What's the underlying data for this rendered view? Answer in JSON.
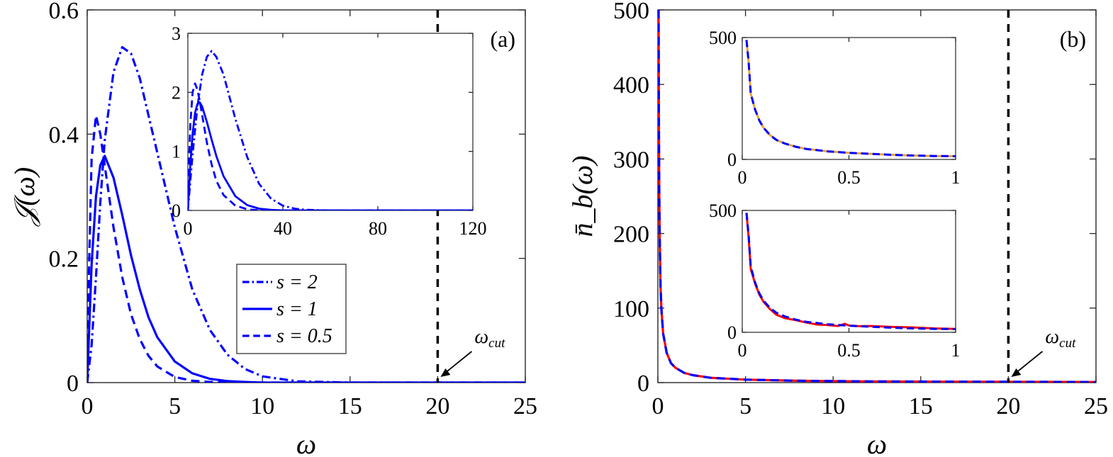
{
  "chart_data": [
    {
      "type": "line",
      "panel_label": "(a)",
      "xlabel": "ω",
      "ylabel": "𝒥(ω)",
      "xlim": [
        0,
        25
      ],
      "ylim": [
        0,
        0.6
      ],
      "xticks": [
        "0",
        "5",
        "10",
        "15",
        "20",
        "25"
      ],
      "yticks": [
        "0",
        "0.2",
        "0.4",
        "0.6"
      ],
      "grid": false,
      "legend_position": "lower-center",
      "cutoff": {
        "x": 20,
        "label": "ω",
        "label_sub": "cut"
      },
      "series": [
        {
          "name": "s = 2",
          "style": "dashdot",
          "color": "#0000ff",
          "x": [
            0,
            0.25,
            0.5,
            0.75,
            1,
            1.5,
            2,
            2.5,
            3,
            3.5,
            4,
            5,
            6,
            7,
            8,
            9,
            10,
            12,
            15,
            20,
            25
          ],
          "y": [
            0,
            0.06,
            0.17,
            0.29,
            0.39,
            0.5,
            0.54,
            0.53,
            0.49,
            0.43,
            0.37,
            0.25,
            0.15,
            0.085,
            0.045,
            0.022,
            0.01,
            0.002,
            0,
            0,
            0
          ]
        },
        {
          "name": "s = 1",
          "style": "solid",
          "color": "#0000ff",
          "x": [
            0,
            0.25,
            0.5,
            0.75,
            1,
            1.5,
            2,
            2.5,
            3,
            3.5,
            4,
            5,
            6,
            7,
            8,
            9,
            10,
            12,
            15,
            20,
            25
          ],
          "y": [
            0,
            0.19,
            0.3,
            0.35,
            0.365,
            0.33,
            0.27,
            0.205,
            0.15,
            0.105,
            0.073,
            0.034,
            0.015,
            0.006,
            0.0025,
            0.001,
            0,
            0,
            0,
            0,
            0
          ]
        },
        {
          "name": "s = 0.5",
          "style": "dashed",
          "color": "#0000ff",
          "x": [
            0,
            0.1,
            0.25,
            0.5,
            0.75,
            1,
            1.5,
            2,
            2.5,
            3,
            3.5,
            4,
            5,
            6,
            7,
            8,
            10,
            15,
            20,
            25
          ],
          "y": [
            0,
            0.18,
            0.36,
            0.43,
            0.4,
            0.35,
            0.25,
            0.17,
            0.11,
            0.07,
            0.043,
            0.026,
            0.009,
            0.003,
            0.001,
            0,
            0,
            0,
            0,
            0
          ]
        }
      ],
      "inset": {
        "xlim": [
          0,
          120
        ],
        "ylim": [
          0,
          3
        ],
        "xticks": [
          "0",
          "40",
          "80",
          "120"
        ],
        "yticks": [
          "0",
          "1",
          "2",
          "3"
        ],
        "series": [
          {
            "name": "s = 2",
            "style": "dashdot",
            "color": "#0000ff",
            "x": [
              0,
              2,
              4,
              6,
              8,
              10,
              12,
              15,
              20,
              25,
              30,
              35,
              40,
              45,
              50,
              60,
              120
            ],
            "y": [
              0,
              0.95,
              1.75,
              2.3,
              2.6,
              2.7,
              2.6,
              2.3,
              1.55,
              0.9,
              0.45,
              0.2,
              0.08,
              0.03,
              0.01,
              0,
              0
            ]
          },
          {
            "name": "s = 1",
            "style": "solid",
            "color": "#0000ff",
            "x": [
              0,
              1,
              2,
              3,
              4,
              5,
              6,
              8,
              10,
              12,
              15,
              20,
              25,
              30,
              35,
              40,
              120
            ],
            "y": [
              0,
              0.75,
              1.3,
              1.65,
              1.8,
              1.83,
              1.76,
              1.5,
              1.2,
              0.92,
              0.58,
              0.24,
              0.09,
              0.03,
              0.01,
              0,
              0
            ]
          },
          {
            "name": "s = 0.5",
            "style": "dashed",
            "color": "#0000ff",
            "x": [
              0,
              0.5,
              1,
              2,
              3,
              4,
              5,
              6,
              8,
              10,
              12,
              15,
              20,
              25,
              30,
              120
            ],
            "y": [
              0,
              0.8,
              1.45,
              2.0,
              2.15,
              2.05,
              1.85,
              1.62,
              1.15,
              0.78,
              0.5,
              0.26,
              0.08,
              0.02,
              0,
              0
            ]
          }
        ]
      }
    },
    {
      "type": "line",
      "panel_label": "(b)",
      "xlabel": "ω",
      "ylabel": "n̄_b(ω)",
      "xlim": [
        0,
        25
      ],
      "ylim": [
        0,
        500
      ],
      "xticks": [
        "0",
        "5",
        "10",
        "15",
        "20",
        "25"
      ],
      "yticks": [
        "0",
        "100",
        "200",
        "300",
        "400",
        "500"
      ],
      "grid": false,
      "cutoff": {
        "x": 20,
        "label": "ω",
        "label_sub": "cut"
      },
      "series": [
        {
          "style": "solid",
          "color": "#ff0000",
          "x": [
            0.04,
            0.06,
            0.08,
            0.1,
            0.15,
            0.2,
            0.3,
            0.5,
            0.75,
            1,
            1.5,
            2,
            3,
            5,
            8,
            12,
            20,
            25
          ],
          "y": [
            500,
            330,
            250,
            200,
            130,
            100,
            66,
            40,
            26,
            20,
            13,
            10,
            6.5,
            4,
            2.5,
            1.6,
            1,
            0.8
          ]
        },
        {
          "style": "dashed",
          "color": "#0000ff",
          "x": [
            0.04,
            0.06,
            0.08,
            0.1,
            0.15,
            0.2,
            0.3,
            0.5,
            0.75,
            1,
            1.5,
            2,
            3,
            5,
            8,
            12,
            20,
            25
          ],
          "y": [
            500,
            330,
            250,
            200,
            130,
            100,
            66,
            40,
            26,
            20,
            13,
            10,
            6.5,
            4,
            2.5,
            1.6,
            1,
            0.8
          ]
        }
      ],
      "insets": [
        {
          "position": "upper",
          "xlim": [
            0,
            1
          ],
          "ylim": [
            0,
            500
          ],
          "xticks": [
            "0",
            "0.5",
            "1"
          ],
          "yticks": [
            "0",
            "500"
          ],
          "series": [
            {
              "style": "solid",
              "color": "#e8a33d",
              "x": [
                0.02,
                0.03,
                0.04,
                0.06,
                0.08,
                0.1,
                0.13,
                0.16,
                0.2,
                0.25,
                0.3,
                0.4,
                0.5,
                0.6,
                0.7,
                0.8,
                0.9,
                1.0
              ],
              "y": [
                490,
                400,
                270,
                205,
                160,
                130,
                100,
                80,
                65,
                52,
                43,
                33,
                27,
                23,
                19,
                16,
                14,
                13
              ]
            },
            {
              "style": "dashed",
              "color": "#0000ff",
              "x": [
                0.02,
                0.03,
                0.04,
                0.06,
                0.08,
                0.1,
                0.13,
                0.16,
                0.2,
                0.25,
                0.3,
                0.4,
                0.5,
                0.6,
                0.7,
                0.8,
                0.9,
                1.0
              ],
              "y": [
                490,
                400,
                270,
                205,
                160,
                130,
                100,
                80,
                65,
                52,
                43,
                33,
                27,
                23,
                19,
                16,
                14,
                13
              ]
            }
          ]
        },
        {
          "position": "lower",
          "xlim": [
            0,
            1
          ],
          "ylim": [
            0,
            500
          ],
          "xticks": [
            "0",
            "0.5",
            "1"
          ],
          "yticks": [
            "0",
            "500"
          ],
          "series": [
            {
              "style": "solid",
              "color": "#ff0000",
              "x": [
                0.02,
                0.03,
                0.04,
                0.06,
                0.08,
                0.1,
                0.13,
                0.16,
                0.2,
                0.25,
                0.3,
                0.35,
                0.4,
                0.45,
                0.48,
                0.5,
                0.55,
                0.6,
                0.7,
                0.8,
                0.9,
                1.0
              ],
              "y": [
                490,
                390,
                260,
                200,
                155,
                125,
                95,
                72,
                58,
                50,
                40,
                32,
                30,
                26,
                35,
                28,
                25,
                26,
                22,
                20,
                16,
                14
              ]
            },
            {
              "style": "dashed",
              "color": "#0000ff",
              "x": [
                0.02,
                0.03,
                0.04,
                0.06,
                0.08,
                0.1,
                0.13,
                0.16,
                0.2,
                0.25,
                0.3,
                0.4,
                0.5,
                0.6,
                0.7,
                0.8,
                0.9,
                1.0
              ],
              "y": [
                490,
                400,
                270,
                205,
                160,
                130,
                100,
                80,
                65,
                52,
                43,
                33,
                27,
                23,
                19,
                16,
                14,
                13
              ]
            }
          ]
        }
      ]
    }
  ]
}
